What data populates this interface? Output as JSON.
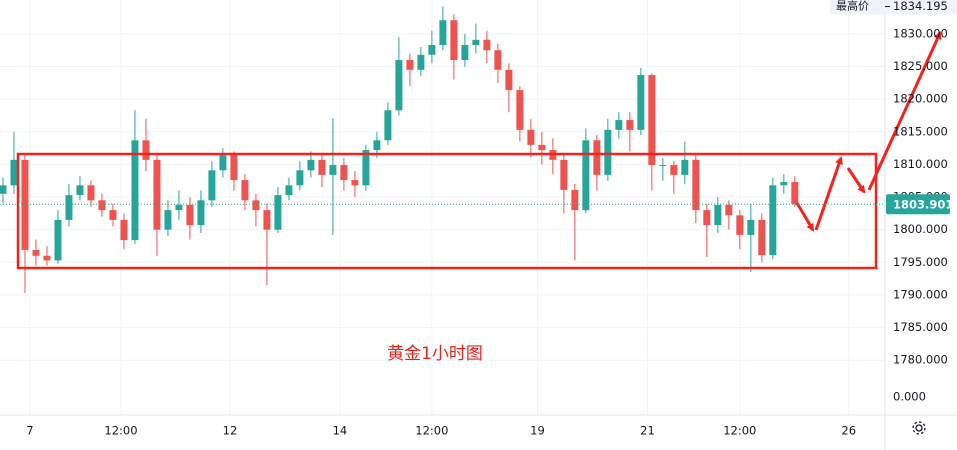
{
  "chart_data": {
    "type": "candlestick",
    "annotation": "黄金1小时图",
    "open": [
      1805.5,
      1806.8,
      1810.7,
      1796.9,
      1796,
      1795.3,
      1801.5,
      1805.3,
      1806.8,
      1804.5,
      1803,
      1801.5,
      1798.4,
      1813.7,
      1810.7,
      1800,
      1803,
      1803.8,
      1800.7,
      1804.5,
      1809.1,
      1811.4,
      1807.6,
      1804.5,
      1803,
      1800,
      1805.3,
      1806.8,
      1809.1,
      1810.7,
      1808.4,
      1809.9,
      1807.6,
      1806.8,
      1812.2,
      1813.7,
      1818.3,
      1826,
      1824.5,
      1826.8,
      1828.3,
      1832.1,
      1826,
      1828.3,
      1829.1,
      1827.5,
      1824.5,
      1821.4,
      1815.3,
      1813,
      1812.2,
      1810.7,
      1806.1,
      1803,
      1813.7,
      1808.4,
      1815.3,
      1816.8,
      1815.3,
      1823.7,
      1809.9,
      1809.9,
      1808.4,
      1810.7,
      1803,
      1800.7,
      1803.8,
      1802.2,
      1799.2,
      1801.5,
      1796.1,
      1806.8,
      1807.3
    ],
    "high": [
      1808,
      1815,
      1811.5,
      1798.5,
      1797.5,
      1803,
      1807,
      1808.2,
      1807.5,
      1805.5,
      1804,
      1802.5,
      1818.3,
      1817,
      1811.5,
      1804.5,
      1806,
      1805,
      1806,
      1810.5,
      1812.5,
      1812,
      1808.5,
      1805.5,
      1804,
      1806.5,
      1808,
      1810.5,
      1812,
      1811.5,
      1817.1,
      1811,
      1809,
      1813,
      1815,
      1819.5,
      1829.5,
      1827,
      1828,
      1830.5,
      1834.195,
      1833,
      1830,
      1831.6,
      1830.5,
      1828.5,
      1825.5,
      1822,
      1817,
      1815,
      1814,
      1811.5,
      1807,
      1815.5,
      1814.5,
      1817,
      1818,
      1818,
      1824.8,
      1824,
      1811,
      1810.5,
      1813.5,
      1811.5,
      1804,
      1805,
      1804.5,
      1803,
      1804,
      1802.5,
      1808,
      1808.5,
      1808.2
    ],
    "low": [
      1804,
      1805.5,
      1790.3,
      1794.5,
      1794.5,
      1794.8,
      1800.5,
      1804.5,
      1803.5,
      1802,
      1800.5,
      1797,
      1797.8,
      1809,
      1796,
      1799,
      1801.5,
      1798.5,
      1799.5,
      1803.5,
      1808,
      1806,
      1803,
      1800.5,
      1791.5,
      1799.5,
      1804.5,
      1806,
      1808,
      1806.5,
      1799.2,
      1806,
      1805,
      1806,
      1811,
      1813,
      1817.5,
      1822,
      1823.5,
      1825.5,
      1827.5,
      1823,
      1825,
      1827,
      1825.5,
      1822.5,
      1818,
      1813.5,
      1811,
      1810,
      1808.5,
      1802.5,
      1795.3,
      1802.5,
      1806,
      1807.5,
      1814,
      1812,
      1814.5,
      1806,
      1807.5,
      1805.5,
      1807,
      1801,
      1795.8,
      1799.5,
      1800,
      1797,
      1793.5,
      1795,
      1795.5,
      1805.5,
      1803.5
    ],
    "close": [
      1806.8,
      1810.7,
      1796.9,
      1796,
      1795.3,
      1801.5,
      1805.3,
      1806.8,
      1804.5,
      1803,
      1801.5,
      1798.4,
      1813.7,
      1810.7,
      1800,
      1803,
      1803.8,
      1800.7,
      1804.5,
      1809.1,
      1811.4,
      1807.6,
      1804.5,
      1803,
      1800,
      1805.3,
      1806.8,
      1809.1,
      1810.7,
      1808.4,
      1809.9,
      1807.6,
      1806.8,
      1812.2,
      1813.7,
      1818.3,
      1826,
      1824.5,
      1826.8,
      1828.3,
      1832.1,
      1826,
      1828.3,
      1829.1,
      1827.5,
      1824.5,
      1821.4,
      1815.3,
      1813,
      1812.2,
      1810.7,
      1806.1,
      1803,
      1813.7,
      1808.4,
      1815.3,
      1816.8,
      1815.3,
      1823.7,
      1809.9,
      1809.9,
      1808.4,
      1810.7,
      1803,
      1800.7,
      1803.8,
      1802.2,
      1799.2,
      1801.5,
      1796.1,
      1806.8,
      1807.3,
      1803.901
    ],
    "up_color": "#26a69a",
    "down_color": "#ef5350",
    "ylim": [
      1771.6,
      1835.2
    ],
    "yticks": [
      {
        "value": 1780,
        "label": "1780.000"
      },
      {
        "value": 1785,
        "label": "1785.000"
      },
      {
        "value": 1790,
        "label": "1790.000"
      },
      {
        "value": 1795,
        "label": "1795.000"
      },
      {
        "value": 1800,
        "label": "1800.000"
      },
      {
        "value": 1805,
        "label": "1805.000"
      },
      {
        "value": 1810,
        "label": "1810.000"
      },
      {
        "value": 1815,
        "label": "1815.000"
      },
      {
        "value": 1820,
        "label": "1820.000"
      },
      {
        "value": 1825,
        "label": "1825.000"
      },
      {
        "value": 1830,
        "label": "1830.000"
      }
    ],
    "volume_axis_label": "0.000",
    "xlim": [
      -0.27,
      80.2
    ],
    "xticks": [
      {
        "value": 2.45,
        "label": "7"
      },
      {
        "value": 10.73,
        "label": "12:00"
      },
      {
        "value": 20.64,
        "label": "12"
      },
      {
        "value": 30.64,
        "label": "14"
      },
      {
        "value": 39,
        "label": "12:00"
      },
      {
        "value": 48.6,
        "label": "19"
      },
      {
        "value": 58.6,
        "label": "21"
      },
      {
        "value": 67,
        "label": "12:00"
      },
      {
        "value": 76.9,
        "label": "26"
      }
    ],
    "high_marker": {
      "label": "最高价",
      "value": 1834.195
    },
    "last_price": 1803.901,
    "last_price_color": "#26a69a",
    "grid": true
  }
}
